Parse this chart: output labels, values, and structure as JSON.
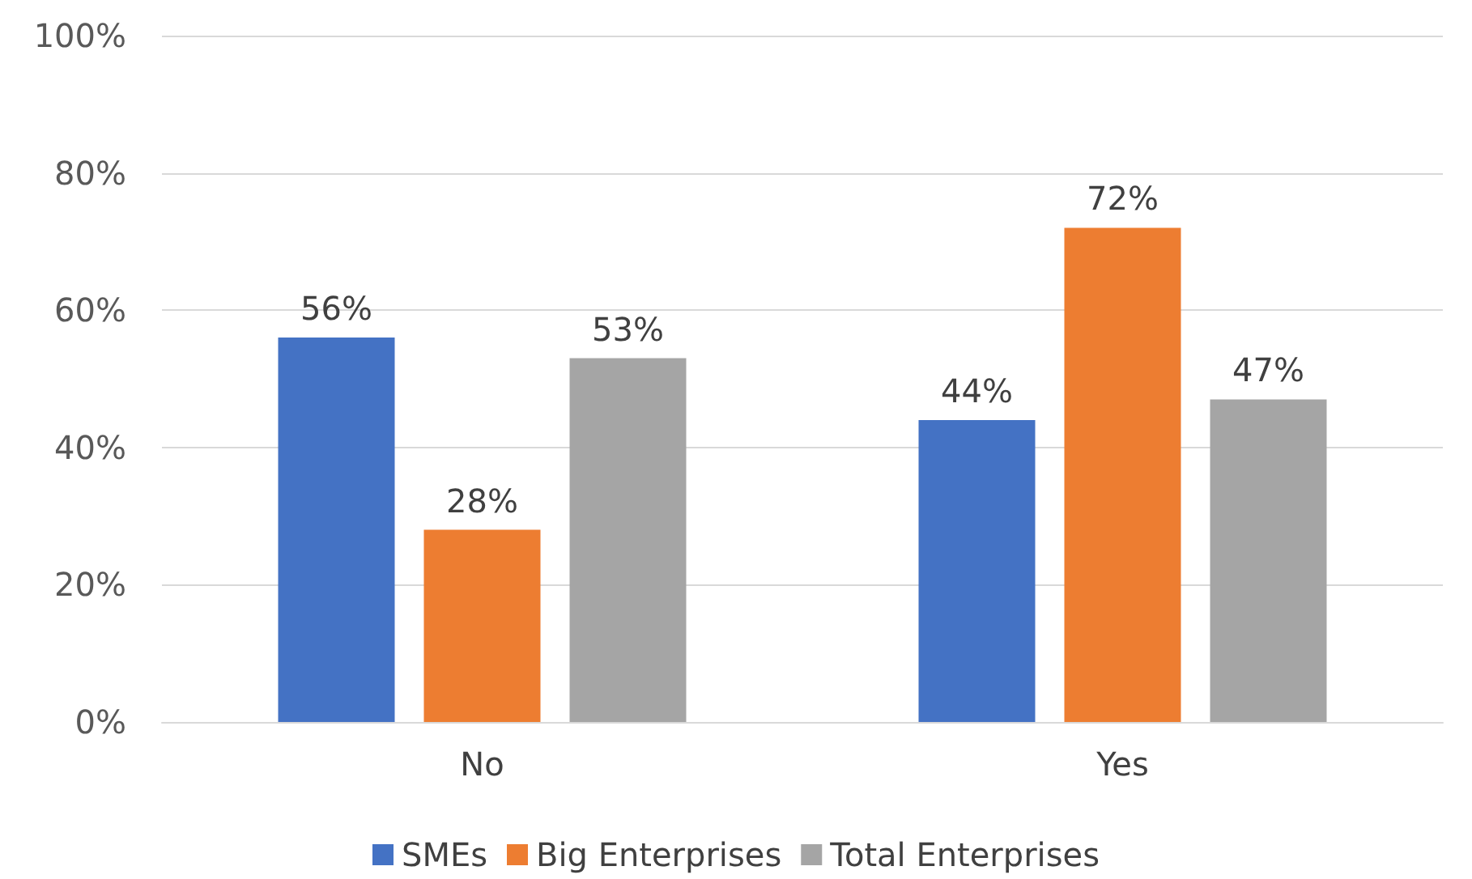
{
  "chart_data": {
    "type": "bar",
    "categories": [
      "No",
      "Yes"
    ],
    "series": [
      {
        "name": "SMEs",
        "color": "#4472c4",
        "values": [
          56,
          44
        ],
        "value_labels": [
          "56%",
          "44%"
        ]
      },
      {
        "name": "Big Enterprises",
        "color": "#ed7d31",
        "values": [
          28,
          72
        ],
        "value_labels": [
          "28%",
          "72%"
        ]
      },
      {
        "name": "Total Enterprises",
        "color": "#a5a5a5",
        "values": [
          53,
          47
        ],
        "value_labels": [
          "53%",
          "47%"
        ]
      }
    ],
    "ylim": [
      0,
      100
    ],
    "yticks": [
      {
        "value": 0,
        "label": "0%"
      },
      {
        "value": 20,
        "label": "20%"
      },
      {
        "value": 40,
        "label": "40%"
      },
      {
        "value": 60,
        "label": "60%"
      },
      {
        "value": 80,
        "label": "80%"
      },
      {
        "value": 100,
        "label": "100%"
      }
    ],
    "grid": "y",
    "legend": "bottom"
  }
}
